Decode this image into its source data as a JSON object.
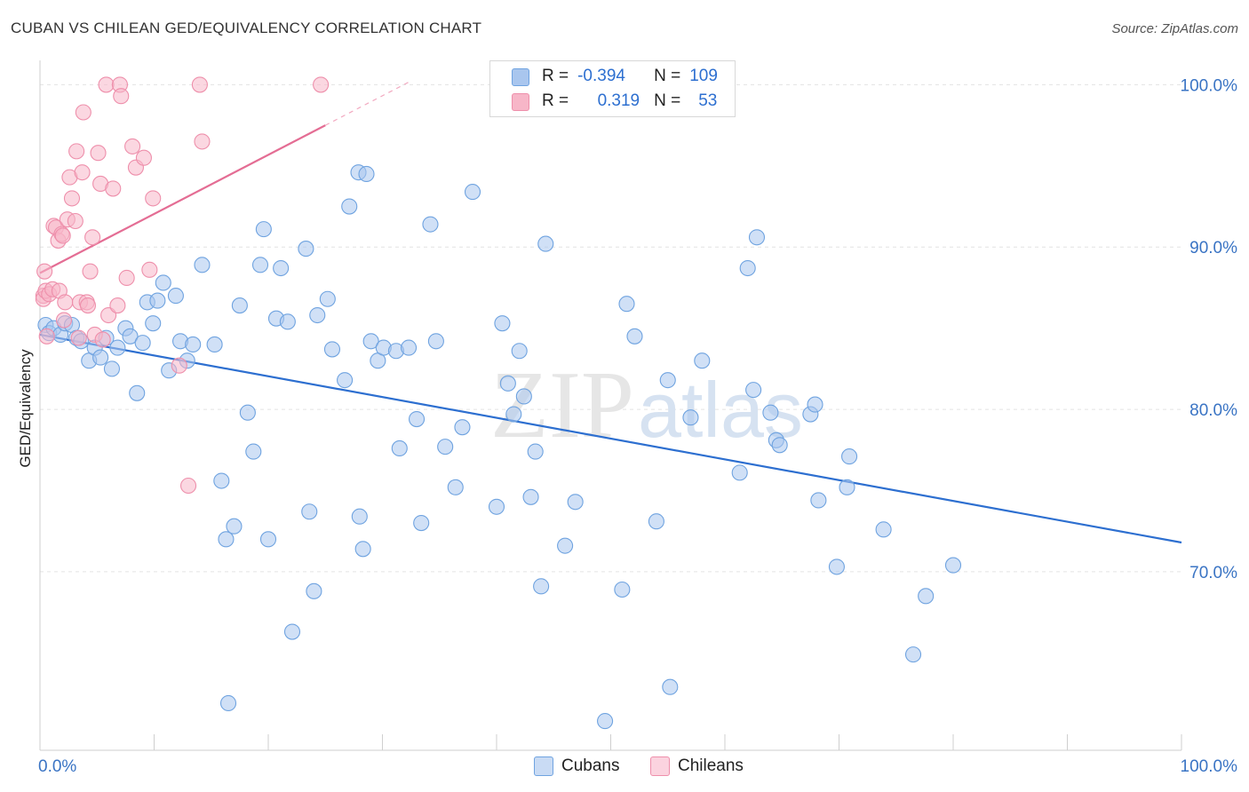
{
  "title": "CUBAN VS CHILEAN GED/EQUIVALENCY CORRELATION CHART",
  "source": "Source: ZipAtlas.com",
  "watermark": {
    "zip": "ZIP",
    "atlas": "atlas"
  },
  "legend": {
    "rows": [
      {
        "r_label": "R =",
        "r_value": "-0.394",
        "n_label": "N =",
        "n_value": "109",
        "color": "#a9c6ee"
      },
      {
        "r_label": "R =",
        "r_value": "0.319",
        "n_label": "N =",
        "n_value": "53",
        "color": "#f7b6c8"
      }
    ]
  },
  "bottom_legend": {
    "cubans": "Cubans",
    "chileans": "Chileans"
  },
  "chart_data": {
    "type": "scatter",
    "title": "CUBAN VS CHILEAN GED/EQUIVALENCY CORRELATION CHART",
    "xlabel": "",
    "ylabel": "GED/Equivalency",
    "xlim": [
      0,
      100
    ],
    "ylim": [
      59,
      101.5
    ],
    "x_tick_labels": [
      "0.0%",
      "100.0%"
    ],
    "y_ticks": [
      100,
      90,
      80,
      70
    ],
    "y_tick_labels": [
      "100.0%",
      "90.0%",
      "80.0%",
      "70.0%"
    ],
    "grid": true,
    "series": [
      {
        "name": "Cubans",
        "color": "#6fa3e0",
        "fill": "#a9c6ee",
        "trend": {
          "x": [
            0,
            100
          ],
          "y": [
            84.6,
            71.8
          ],
          "color": "#2d6fd0"
        },
        "points": [
          [
            0.5,
            85.2
          ],
          [
            0.8,
            84.7
          ],
          [
            1.2,
            85.0
          ],
          [
            1.8,
            84.6
          ],
          [
            2.2,
            85.3
          ],
          [
            2.8,
            85.2
          ],
          [
            3.2,
            84.4
          ],
          [
            3.6,
            84.2
          ],
          [
            4.3,
            83.0
          ],
          [
            4.8,
            83.8
          ],
          [
            5.3,
            83.2
          ],
          [
            5.8,
            84.4
          ],
          [
            6.3,
            82.5
          ],
          [
            6.8,
            83.8
          ],
          [
            7.5,
            85.0
          ],
          [
            7.9,
            84.5
          ],
          [
            8.5,
            81.0
          ],
          [
            9.0,
            84.1
          ],
          [
            9.4,
            86.6
          ],
          [
            9.9,
            85.3
          ],
          [
            10.3,
            86.7
          ],
          [
            10.8,
            87.8
          ],
          [
            11.3,
            82.4
          ],
          [
            11.9,
            87.0
          ],
          [
            12.3,
            84.2
          ],
          [
            12.9,
            83.0
          ],
          [
            13.4,
            84.0
          ],
          [
            14.2,
            88.9
          ],
          [
            15.3,
            84.0
          ],
          [
            15.9,
            75.6
          ],
          [
            16.3,
            72.0
          ],
          [
            16.5,
            61.9
          ],
          [
            17.0,
            72.8
          ],
          [
            17.5,
            86.4
          ],
          [
            18.2,
            79.8
          ],
          [
            18.7,
            77.4
          ],
          [
            19.3,
            88.9
          ],
          [
            19.6,
            91.1
          ],
          [
            20.0,
            72.0
          ],
          [
            20.7,
            85.6
          ],
          [
            21.1,
            88.7
          ],
          [
            21.7,
            85.4
          ],
          [
            22.1,
            66.3
          ],
          [
            23.3,
            89.9
          ],
          [
            23.6,
            73.7
          ],
          [
            24.0,
            68.8
          ],
          [
            24.3,
            85.8
          ],
          [
            25.2,
            86.8
          ],
          [
            25.6,
            83.7
          ],
          [
            26.7,
            81.8
          ],
          [
            27.1,
            92.5
          ],
          [
            27.9,
            94.6
          ],
          [
            28.0,
            73.4
          ],
          [
            28.3,
            71.4
          ],
          [
            28.6,
            94.5
          ],
          [
            29.0,
            84.2
          ],
          [
            29.6,
            83.0
          ],
          [
            30.1,
            83.8
          ],
          [
            31.2,
            83.6
          ],
          [
            31.5,
            77.6
          ],
          [
            32.3,
            83.8
          ],
          [
            33.0,
            79.4
          ],
          [
            33.4,
            73.0
          ],
          [
            34.2,
            91.4
          ],
          [
            34.7,
            84.2
          ],
          [
            35.5,
            77.7
          ],
          [
            36.4,
            75.2
          ],
          [
            37.0,
            78.9
          ],
          [
            37.9,
            93.4
          ],
          [
            40.0,
            74.0
          ],
          [
            40.5,
            85.3
          ],
          [
            41.0,
            81.6
          ],
          [
            41.5,
            79.7
          ],
          [
            42.0,
            83.6
          ],
          [
            42.4,
            80.8
          ],
          [
            43.0,
            74.6
          ],
          [
            43.4,
            77.4
          ],
          [
            43.9,
            69.1
          ],
          [
            44.3,
            90.2
          ],
          [
            46.0,
            71.6
          ],
          [
            46.9,
            74.3
          ],
          [
            49.5,
            60.8
          ],
          [
            51.0,
            68.9
          ],
          [
            51.4,
            86.5
          ],
          [
            52.1,
            84.5
          ],
          [
            54.0,
            73.1
          ],
          [
            55.0,
            81.8
          ],
          [
            55.2,
            62.9
          ],
          [
            57.0,
            79.5
          ],
          [
            58.0,
            83.0
          ],
          [
            61.3,
            76.1
          ],
          [
            62.0,
            88.7
          ],
          [
            62.5,
            81.2
          ],
          [
            62.8,
            90.6
          ],
          [
            64.0,
            79.8
          ],
          [
            64.5,
            78.1
          ],
          [
            64.8,
            77.8
          ],
          [
            67.5,
            79.7
          ],
          [
            67.9,
            80.3
          ],
          [
            68.2,
            74.4
          ],
          [
            69.8,
            70.3
          ],
          [
            70.7,
            75.2
          ],
          [
            70.9,
            77.1
          ],
          [
            73.9,
            72.6
          ],
          [
            76.5,
            64.9
          ],
          [
            77.6,
            68.5
          ],
          [
            80.0,
            70.4
          ]
        ]
      },
      {
        "name": "Chileans",
        "color": "#ee8fab",
        "fill": "#f7b6c8",
        "trend": {
          "x": [
            0,
            25
          ],
          "y": [
            88.4,
            97.5
          ],
          "color": "#e46d94"
        },
        "points": [
          [
            0.3,
            87.0
          ],
          [
            0.3,
            86.8
          ],
          [
            0.4,
            88.5
          ],
          [
            0.5,
            87.3
          ],
          [
            0.6,
            84.5
          ],
          [
            0.8,
            87.1
          ],
          [
            1.1,
            87.4
          ],
          [
            1.2,
            91.3
          ],
          [
            1.4,
            91.2
          ],
          [
            1.6,
            90.4
          ],
          [
            1.7,
            87.3
          ],
          [
            1.9,
            90.8
          ],
          [
            2.0,
            90.7
          ],
          [
            2.1,
            85.5
          ],
          [
            2.2,
            86.6
          ],
          [
            2.4,
            91.7
          ],
          [
            2.6,
            94.3
          ],
          [
            2.8,
            93.0
          ],
          [
            3.1,
            91.6
          ],
          [
            3.2,
            95.9
          ],
          [
            3.4,
            84.4
          ],
          [
            3.5,
            86.6
          ],
          [
            3.7,
            94.6
          ],
          [
            3.8,
            98.3
          ],
          [
            4.1,
            86.6
          ],
          [
            4.2,
            86.4
          ],
          [
            4.4,
            88.5
          ],
          [
            4.6,
            90.6
          ],
          [
            4.8,
            84.6
          ],
          [
            5.1,
            95.8
          ],
          [
            5.3,
            93.9
          ],
          [
            5.5,
            84.3
          ],
          [
            5.8,
            100.0
          ],
          [
            6.0,
            85.8
          ],
          [
            6.4,
            93.6
          ],
          [
            6.8,
            86.4
          ],
          [
            7.0,
            100.0
          ],
          [
            7.1,
            99.3
          ],
          [
            7.6,
            88.1
          ],
          [
            8.1,
            96.2
          ],
          [
            8.4,
            94.9
          ],
          [
            9.1,
            95.5
          ],
          [
            9.6,
            88.6
          ],
          [
            9.9,
            93.0
          ],
          [
            12.2,
            82.7
          ],
          [
            13.0,
            75.3
          ],
          [
            14.0,
            100.0
          ],
          [
            14.2,
            96.5
          ],
          [
            24.6,
            100.0
          ]
        ]
      }
    ]
  }
}
